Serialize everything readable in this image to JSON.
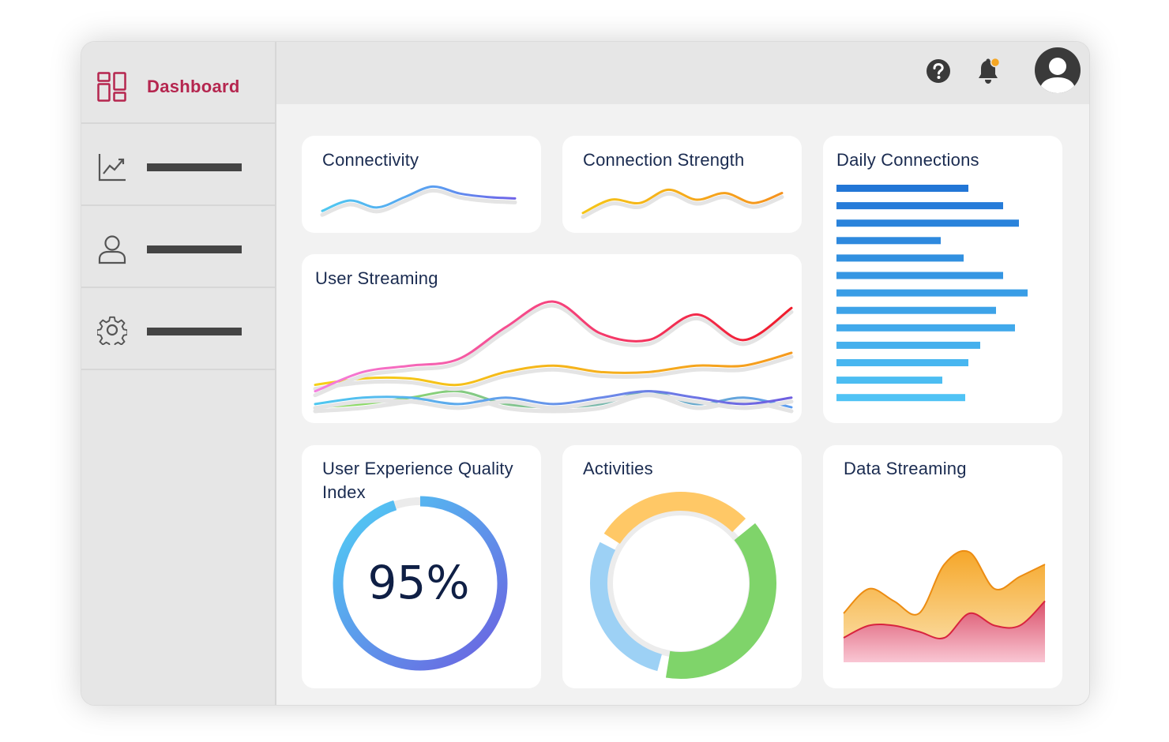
{
  "sidebar": {
    "items": [
      {
        "label": "Dashboard",
        "icon": "dashboard-grid-icon",
        "active": true
      },
      {
        "label": "",
        "icon": "trend-chart-icon"
      },
      {
        "label": "",
        "icon": "user-icon"
      },
      {
        "label": "",
        "icon": "gear-icon"
      }
    ]
  },
  "header": {
    "help_icon": "question-circle-icon",
    "notification_icon": "bell-icon",
    "notification_badge_color": "#f5a623",
    "avatar_icon": "user-avatar-icon"
  },
  "cards": {
    "connectivity": {
      "title": "Connectivity"
    },
    "connection_strength": {
      "title": "Connection Strength"
    },
    "daily_connections": {
      "title": "Daily Connections"
    },
    "user_streaming": {
      "title": "User Streaming"
    },
    "ux_quality": {
      "title": "User Experience Quality Index",
      "value": "95%"
    },
    "activities": {
      "title": "Activities"
    },
    "data_streaming": {
      "title": "Data Streaming"
    }
  },
  "colors": {
    "accent": "#b5264f",
    "title": "#1a2b50"
  },
  "chart_data": [
    {
      "id": "connectivity",
      "type": "line",
      "series": [
        {
          "values": [
            2,
            5,
            3,
            6,
            9,
            7,
            6,
            5.6
          ]
        }
      ]
    },
    {
      "id": "connection_strength",
      "type": "line",
      "series": [
        {
          "values": [
            1,
            5,
            4,
            8,
            5,
            7,
            4,
            7
          ]
        }
      ]
    },
    {
      "id": "daily_connections",
      "type": "bar",
      "orientation": "horizontal",
      "values": [
        167,
        211,
        231,
        132,
        161,
        211,
        242,
        202,
        226,
        182,
        167,
        134,
        163
      ]
    },
    {
      "id": "user_streaming",
      "type": "line",
      "series": [
        {
          "values": [
            3,
            6,
            7,
            8,
            13,
            17,
            12,
            11,
            15,
            11,
            16
          ]
        },
        {
          "values": [
            4,
            5,
            5,
            4,
            6,
            7,
            6,
            6,
            7,
            7,
            9
          ]
        },
        {
          "values": [
            1,
            2,
            2,
            1,
            2,
            1,
            2,
            3,
            2,
            1,
            2
          ]
        },
        {
          "values": [
            0.5,
            1,
            2,
            3,
            1,
            0.5,
            1,
            3,
            1,
            2,
            0.5
          ]
        }
      ]
    },
    {
      "id": "ux_quality",
      "type": "pie",
      "values": [
        95,
        5
      ]
    },
    {
      "id": "activities",
      "type": "pie",
      "values": [
        30,
        30,
        40
      ]
    },
    {
      "id": "data_streaming",
      "type": "area",
      "series": [
        {
          "values": [
            4,
            6,
            5,
            4,
            8,
            9,
            6,
            7,
            8
          ]
        },
        {
          "values": [
            2,
            3,
            3,
            2.5,
            2,
            4,
            3,
            3,
            5
          ]
        }
      ]
    }
  ]
}
